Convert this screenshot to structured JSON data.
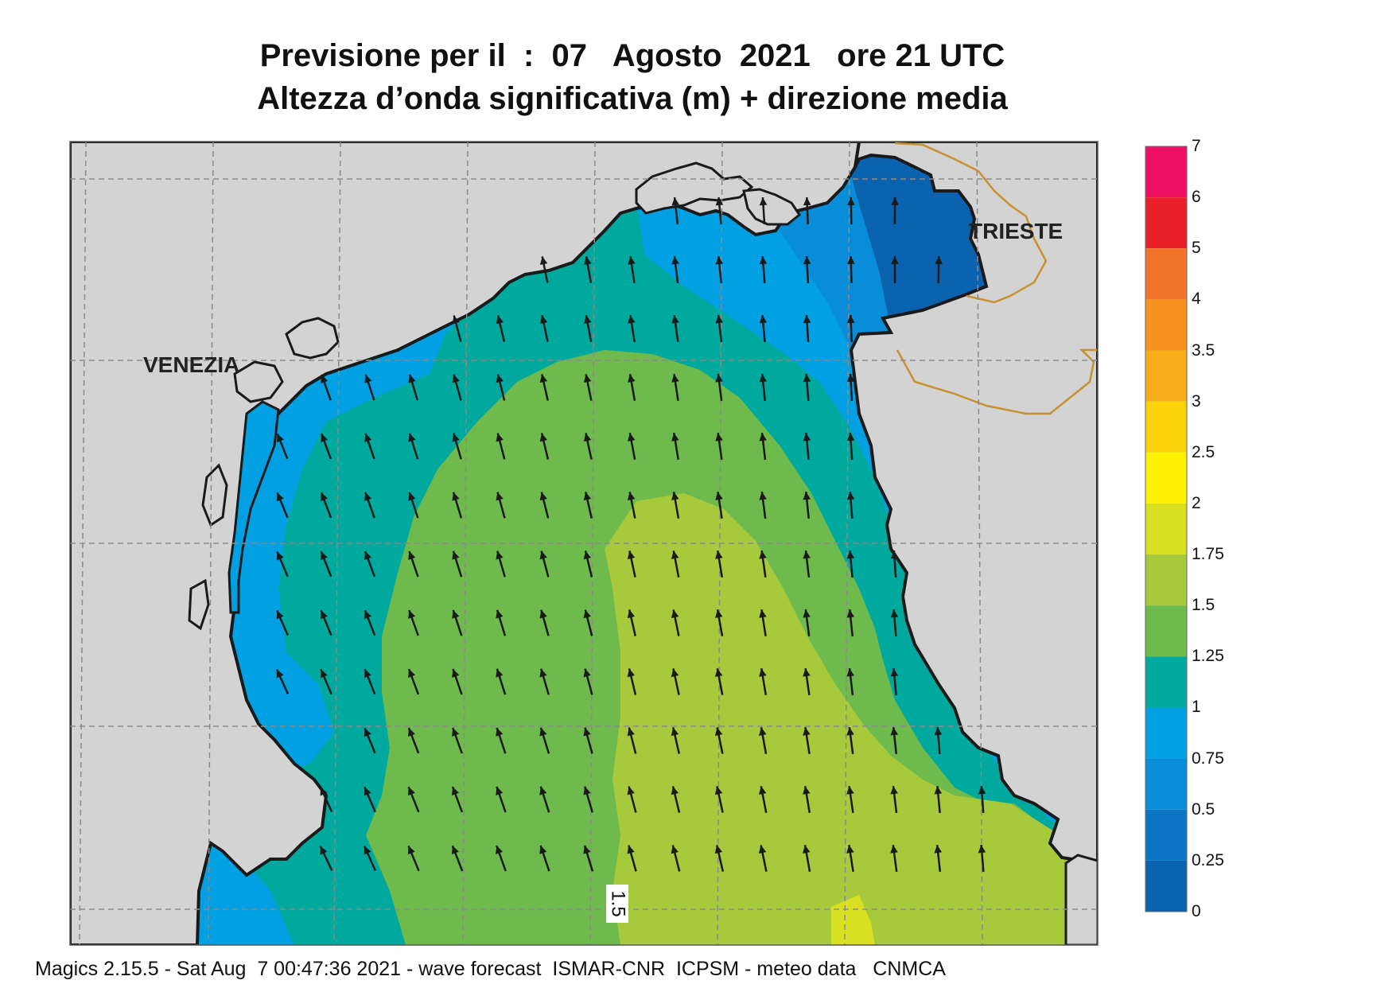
{
  "title": {
    "line1": "Previsione per il  :  07   Agosto  2021   ore 21 UTC",
    "line2": "Altezza d’onda significativa (m) + direzione media"
  },
  "map": {
    "cities": [
      {
        "name": "VENEZIA"
      },
      {
        "name": "TRIESTE"
      }
    ],
    "contour_label": "1.5",
    "land_color": "#d3d3d3",
    "coast_color": "#1a1a1a",
    "border_color": "#c8912e",
    "arrow_color": "#1a1a1a"
  },
  "legend": {
    "levels": [
      {
        "label": "7",
        "color": null
      },
      {
        "label": "6",
        "color": "#ec1163"
      },
      {
        "label": "5",
        "color": "#e8202a"
      },
      {
        "label": "4",
        "color": "#f2742a"
      },
      {
        "label": "3.5",
        "color": "#f6901e"
      },
      {
        "label": "3",
        "color": "#f8ad1a"
      },
      {
        "label": "2.5",
        "color": "#fcd20a"
      },
      {
        "label": "2",
        "color": "#fff200"
      },
      {
        "label": "1.75",
        "color": "#d8e021"
      },
      {
        "label": "1.5",
        "color": "#a7c93c"
      },
      {
        "label": "1.25",
        "color": "#6fba4c"
      },
      {
        "label": "1",
        "color": "#00a99d"
      },
      {
        "label": "0.75",
        "color": "#00a0e3"
      },
      {
        "label": "0.5",
        "color": "#0a8dd8"
      },
      {
        "label": "0.25",
        "color": "#0a76c3"
      },
      {
        "label": "0",
        "color": "#0b62af"
      }
    ]
  },
  "footer": "Magics 2.15.5 - Sat Aug  7 00:47:36 2021 - wave forecast  ISMAR-CNR  ICPSM - meteo data   CNMCA"
}
